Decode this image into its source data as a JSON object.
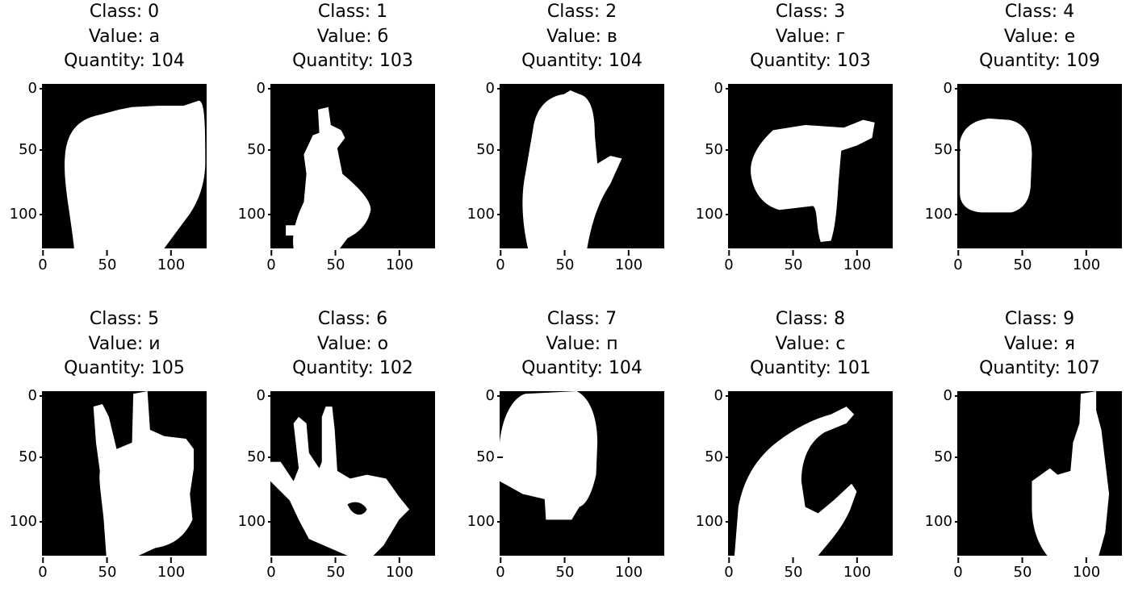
{
  "figure": {
    "tick_values": [
      0,
      50,
      100
    ],
    "panels": [
      {
        "class_line": "Class: 0",
        "value_line": "Value: а",
        "quantity_line": "Quantity: 104",
        "shape": "fist"
      },
      {
        "class_line": "Class: 1",
        "value_line": "Value: б",
        "quantity_line": "Quantity: 103",
        "shape": "pointing-thumb"
      },
      {
        "class_line": "Class: 2",
        "value_line": "Value: в",
        "quantity_line": "Quantity: 104",
        "shape": "flat-hand"
      },
      {
        "class_line": "Class: 3",
        "value_line": "Value: г",
        "quantity_line": "Quantity: 103",
        "shape": "horizontal-hand"
      },
      {
        "class_line": "Class: 4",
        "value_line": "Value: е",
        "quantity_line": "Quantity: 109",
        "shape": "small-fist"
      },
      {
        "class_line": "Class: 5",
        "value_line": "Value: и",
        "quantity_line": "Quantity: 105",
        "shape": "two-fingers"
      },
      {
        "class_line": "Class: 6",
        "value_line": "Value: о",
        "quantity_line": "Quantity: 102",
        "shape": "ok-sign"
      },
      {
        "class_line": "Class: 7",
        "value_line": "Value: п",
        "quantity_line": "Quantity: 104",
        "shape": "blob-hand"
      },
      {
        "class_line": "Class: 8",
        "value_line": "Value: с",
        "quantity_line": "Quantity: 101",
        "shape": "c-shape"
      },
      {
        "class_line": "Class: 9",
        "value_line": "Value: я",
        "quantity_line": "Quantity: 107",
        "shape": "thumb-up"
      }
    ]
  }
}
